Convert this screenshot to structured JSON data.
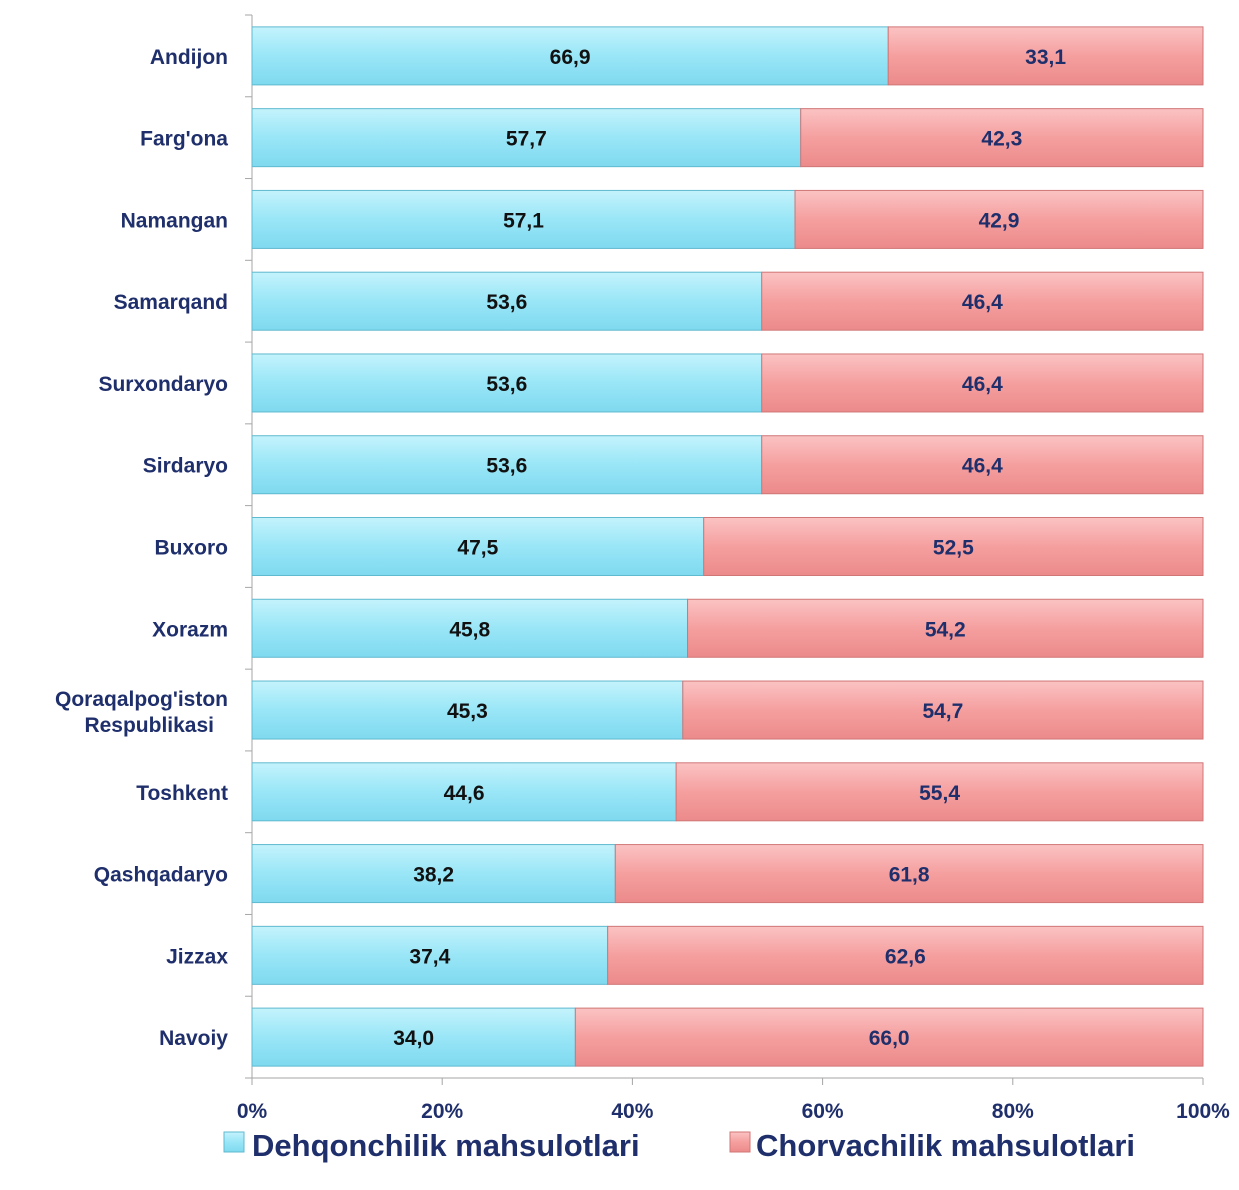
{
  "chart_data": {
    "type": "bar",
    "orientation": "horizontal",
    "stacked": "percent",
    "categories": [
      "Andijon",
      "Farg'ona",
      "Namangan",
      "Samarqand",
      "Surxondaryo",
      "Sirdaryo",
      "Buxoro",
      "Xorazm",
      "Qoraqalpog'iston Respublikasi",
      "Toshkent",
      "Qashqadaryo",
      "Jizzax",
      "Navoiy"
    ],
    "series": [
      {
        "name": "Dehqonchilik mahsulotlari",
        "color": "#99e6f7",
        "values": [
          66.9,
          57.7,
          57.1,
          53.6,
          53.6,
          53.6,
          47.5,
          45.8,
          45.3,
          44.6,
          38.2,
          37.4,
          34.0
        ],
        "labels": [
          "66,9",
          "57,7",
          "57,1",
          "53,6",
          "53,6",
          "53,6",
          "47,5",
          "45,8",
          "45,3",
          "44,6",
          "38,2",
          "37,4",
          "34,0"
        ]
      },
      {
        "name": "Chorvachilik mahsulotlari",
        "color": "#f59f9f",
        "values": [
          33.1,
          42.3,
          42.9,
          46.4,
          46.4,
          46.4,
          52.5,
          54.2,
          54.7,
          55.4,
          61.8,
          62.6,
          66.0
        ],
        "labels": [
          "33,1",
          "42,3",
          "42,9",
          "46,4",
          "46,4",
          "46,4",
          "52,5",
          "54,2",
          "54,7",
          "55,4",
          "61,8",
          "62,6",
          "66,0"
        ]
      }
    ],
    "x_ticks": [
      "0%",
      "20%",
      "40%",
      "60%",
      "80%",
      "100%"
    ],
    "xlim": [
      0,
      100
    ],
    "grid": false,
    "legend": "bottom",
    "title": "",
    "xlabel": "",
    "ylabel": ""
  }
}
